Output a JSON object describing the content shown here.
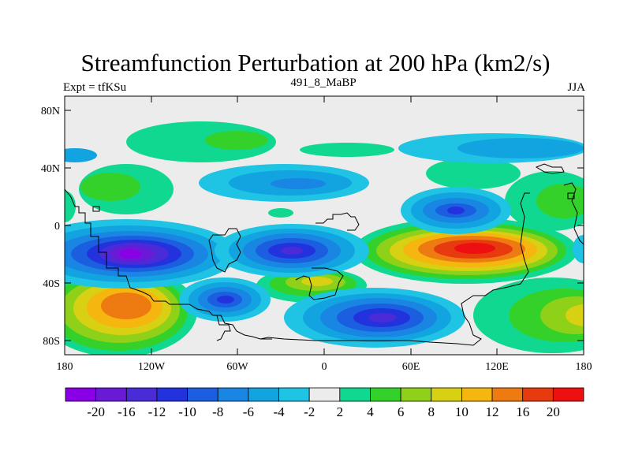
{
  "title": "Streamfunction Perturbation at 200 hPa (km2/s)",
  "subtitle_left": "Expt = tfKSu",
  "subtitle_center": "491_8_MaBP",
  "subtitle_right": "JJA",
  "lat_ticks": [
    "80N",
    "40N",
    "0",
    "40S",
    "80S"
  ],
  "lon_ticks": [
    "180",
    "120W",
    "60W",
    "0",
    "60E",
    "120E",
    "180"
  ],
  "map_data": {
    "type": "contour-map",
    "lon_range": [
      -180,
      180
    ],
    "lat_range": [
      -90,
      90
    ],
    "levels": [
      "-20",
      "-16",
      "-12",
      "-10",
      "-8",
      "-6",
      "-4",
      "-2",
      "2",
      "4",
      "6",
      "8",
      "10",
      "12",
      "16",
      "20"
    ],
    "colors": [
      "#8a00e6",
      "#6a1ad6",
      "#4b2ad8",
      "#2233dd",
      "#1b5fe0",
      "#1a86e3",
      "#12a4e0",
      "#1fc3e3",
      "#ececec",
      "#10d890",
      "#34d12a",
      "#8fd018",
      "#d8d012",
      "#f5b60f",
      "#ee7a12",
      "#e83a0f",
      "#ee1010"
    ],
    "extrema": [
      {
        "lon": -125,
        "lat": -20,
        "value": -20
      },
      {
        "lon": -20,
        "lat": -18,
        "value": -12
      },
      {
        "lon": 37,
        "lat": -63,
        "value": -12
      },
      {
        "lon": -60,
        "lat": -51,
        "value": -10
      },
      {
        "lon": 92,
        "lat": 10,
        "value": -10
      },
      {
        "lon": -10,
        "lat": 30,
        "value": -6
      },
      {
        "lon": -130,
        "lat": -57,
        "value": 16
      },
      {
        "lon": 100,
        "lat": -17,
        "value": 20
      },
      {
        "lon": -5,
        "lat": -40,
        "value": 8
      },
      {
        "lon": 178,
        "lat": -60,
        "value": 10
      },
      {
        "lon": -160,
        "lat": 25,
        "value": 6
      },
      {
        "lon": -90,
        "lat": 60,
        "value": 4
      },
      {
        "lon": 30,
        "lat": 52,
        "value": 2
      },
      {
        "lon": 165,
        "lat": 20,
        "value": 6
      }
    ]
  }
}
